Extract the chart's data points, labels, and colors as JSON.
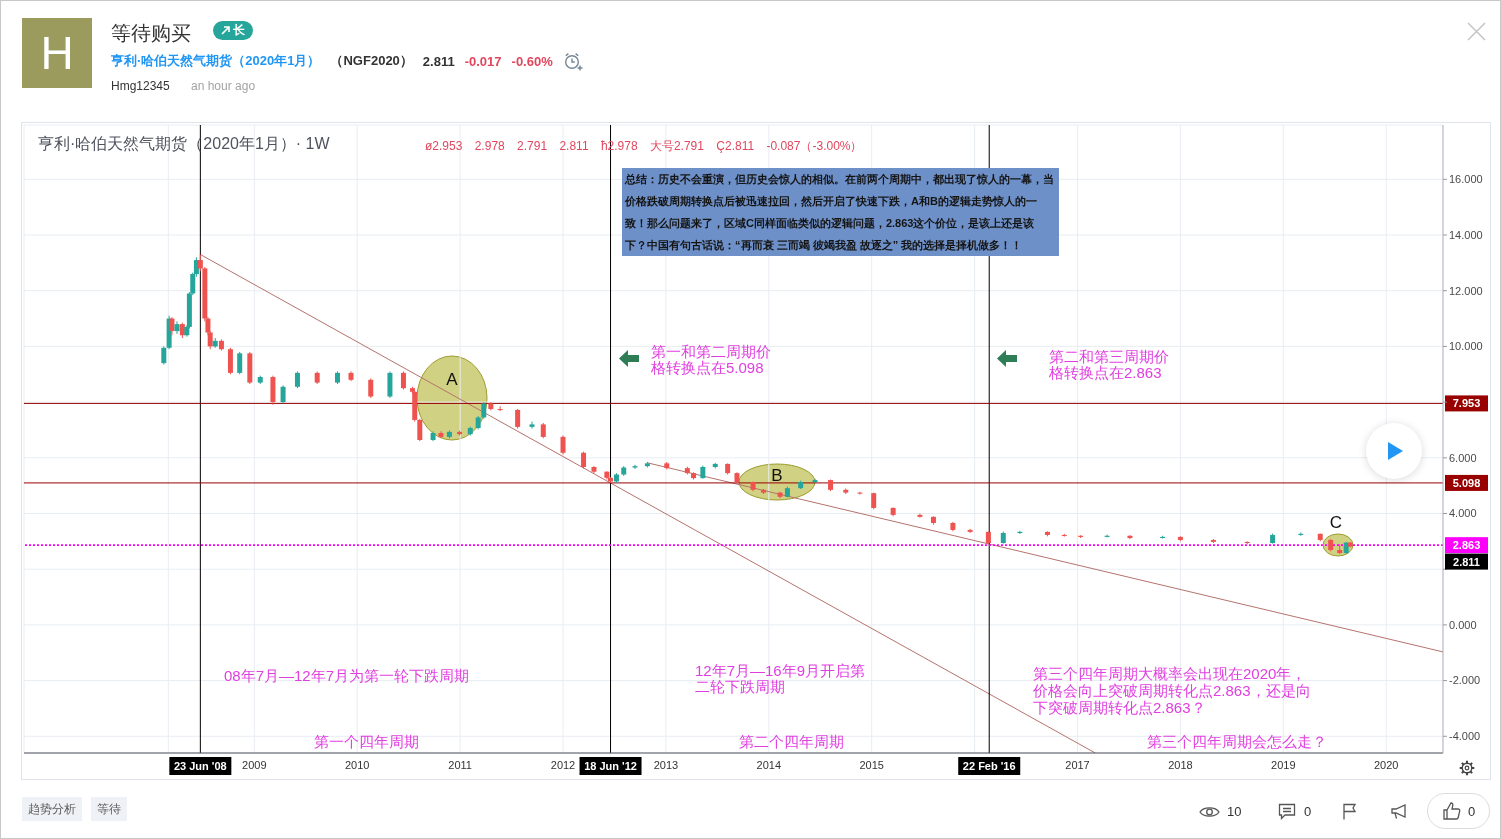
{
  "chart_data": {
    "type": "candlestick",
    "title": "亨利·哈伯天然气期货（2020年1月）· 1W",
    "subtitle": "ø2.953 2.978 2.791 2.811 ћ2.978 大号2.791 Ç2.811 -0.087（-3.00%）",
    "x": [
      "2008-02-14",
      "2008-03-04",
      "2008-03-14",
      "2008-04-01",
      "2008-04-20",
      "2008-05-06",
      "2008-05-15",
      "2008-05-27",
      "2008-06-09",
      "2008-06-23",
      "2008-07-09",
      "2008-07-20",
      "2008-07-28",
      "2008-08-15",
      "2008-09-06",
      "2008-10-08",
      "2008-11-10",
      "2008-12-16",
      "2009-01-22",
      "2009-03-08",
      "2009-04-13",
      "2009-06-03",
      "2009-08-12",
      "2009-10-23",
      "2009-12-10",
      "2010-02-18",
      "2010-04-27",
      "2010-06-14",
      "2010-07-16",
      "2010-07-24",
      "2010-08-11",
      "2010-09-27",
      "2010-10-25",
      "2010-11-24",
      "2010-12-30",
      "2011-02-06",
      "2011-03-06",
      "2011-03-26",
      "2011-04-20",
      "2011-05-23",
      "2011-07-24",
      "2011-09-13",
      "2011-10-23",
      "2012-01-01",
      "2012-03-14",
      "2012-04-20",
      "2012-06-05",
      "2012-06-18",
      "2012-07-09",
      "2012-08-04",
      "2012-09-13",
      "2012-10-27",
      "2013-01-04",
      "2013-03-18",
      "2013-04-09",
      "2013-05-12",
      "2013-06-25",
      "2013-08-08",
      "2013-09-10",
      "2013-11-06",
      "2013-12-13",
      "2014-02-10",
      "2014-03-08",
      "2014-04-24",
      "2014-06-14",
      "2014-08-08",
      "2014-10-01",
      "2014-11-20",
      "2015-01-08",
      "2015-03-18",
      "2015-06-21",
      "2015-08-08",
      "2015-10-16",
      "2015-12-16",
      "2016-02-19",
      "2016-04-12",
      "2016-06-10",
      "2016-09-16",
      "2016-11-15",
      "2017-01-12",
      "2017-04-16",
      "2017-07-06",
      "2017-10-30",
      "2018-01-01",
      "2018-04-28",
      "2018-08-26",
      "2018-11-24",
      "2019-03-04",
      "2019-05-12",
      "2019-06-18",
      "2019-07-20",
      "2019-08-12",
      "2019-08-26"
    ],
    "ohlc": [
      [
        9.4,
        10.0,
        9.35,
        9.95
      ],
      [
        9.95,
        11.1,
        9.9,
        11.0
      ],
      [
        11.0,
        11.05,
        10.4,
        10.55
      ],
      [
        10.55,
        10.9,
        10.45,
        10.8
      ],
      [
        10.8,
        10.85,
        10.3,
        10.4
      ],
      [
        10.4,
        10.75,
        10.35,
        10.7
      ],
      [
        10.7,
        11.95,
        10.65,
        11.9
      ],
      [
        11.9,
        12.65,
        11.85,
        12.6
      ],
      [
        12.6,
        13.2,
        12.5,
        13.1
      ],
      [
        13.1,
        13.3,
        12.7,
        12.8
      ],
      [
        12.8,
        12.85,
        10.9,
        11.0
      ],
      [
        11.0,
        11.05,
        10.4,
        10.5
      ],
      [
        10.5,
        10.55,
        9.9,
        10.0
      ],
      [
        10.0,
        10.3,
        9.95,
        10.2
      ],
      [
        10.2,
        10.25,
        9.85,
        9.9
      ],
      [
        9.9,
        9.95,
        9.0,
        9.05
      ],
      [
        9.05,
        9.8,
        9.0,
        9.75
      ],
      [
        9.75,
        9.8,
        8.65,
        8.7
      ],
      [
        8.7,
        8.95,
        8.65,
        8.9
      ],
      [
        8.9,
        8.95,
        7.9,
        8.0
      ],
      [
        8.0,
        8.6,
        7.95,
        8.55
      ],
      [
        8.55,
        9.1,
        8.5,
        9.05
      ],
      [
        9.05,
        9.1,
        8.65,
        8.7
      ],
      [
        8.7,
        9.1,
        8.65,
        9.05
      ],
      [
        9.05,
        9.1,
        8.75,
        8.8
      ],
      [
        8.8,
        8.85,
        8.15,
        8.2
      ],
      [
        8.2,
        9.1,
        8.15,
        9.05
      ],
      [
        9.05,
        9.1,
        8.45,
        8.5
      ],
      [
        8.5,
        8.55,
        8.3,
        8.37
      ],
      [
        8.37,
        8.4,
        7.3,
        7.36
      ],
      [
        7.36,
        7.4,
        6.6,
        6.64
      ],
      [
        6.64,
        6.95,
        6.6,
        6.89
      ],
      [
        6.89,
        6.95,
        6.7,
        6.75
      ],
      [
        6.75,
        6.98,
        6.7,
        6.93
      ],
      [
        6.93,
        6.97,
        6.8,
        6.85
      ],
      [
        6.85,
        7.12,
        6.8,
        7.07
      ],
      [
        7.07,
        7.5,
        7.02,
        7.45
      ],
      [
        7.45,
        8.0,
        7.4,
        7.95
      ],
      [
        7.95,
        8.0,
        7.7,
        7.75
      ],
      [
        7.75,
        7.85,
        7.68,
        7.72
      ],
      [
        7.72,
        7.75,
        7.05,
        7.11
      ],
      [
        7.11,
        7.3,
        7.05,
        7.2
      ],
      [
        7.2,
        7.25,
        6.7,
        6.75
      ],
      [
        6.75,
        6.8,
        6.12,
        6.18
      ],
      [
        6.18,
        6.22,
        5.62,
        5.67
      ],
      [
        5.67,
        5.7,
        5.45,
        5.5
      ],
      [
        5.5,
        5.52,
        5.22,
        5.28
      ],
      [
        5.28,
        5.3,
        5.1,
        5.15
      ],
      [
        5.15,
        5.45,
        5.1,
        5.4
      ],
      [
        5.4,
        5.7,
        5.35,
        5.65
      ],
      [
        5.65,
        5.75,
        5.6,
        5.7
      ],
      [
        5.7,
        5.85,
        5.65,
        5.8
      ],
      [
        5.8,
        5.85,
        5.58,
        5.63
      ],
      [
        5.63,
        5.68,
        5.4,
        5.45
      ],
      [
        5.45,
        5.48,
        5.22,
        5.27
      ],
      [
        5.27,
        5.72,
        5.25,
        5.67
      ],
      [
        5.67,
        5.82,
        5.62,
        5.78
      ],
      [
        5.78,
        5.8,
        5.4,
        5.45
      ],
      [
        5.45,
        5.48,
        5.08,
        5.13
      ],
      [
        5.13,
        5.15,
        4.8,
        4.85
      ],
      [
        4.85,
        4.88,
        4.7,
        4.75
      ],
      [
        4.75,
        4.78,
        4.55,
        4.6
      ],
      [
        4.6,
        4.96,
        4.58,
        4.91
      ],
      [
        4.91,
        5.18,
        4.88,
        5.13
      ],
      [
        5.13,
        5.25,
        5.1,
        5.2
      ],
      [
        5.2,
        5.22,
        4.8,
        4.85
      ],
      [
        4.85,
        4.9,
        4.7,
        4.75
      ],
      [
        4.75,
        4.78,
        4.68,
        4.73
      ],
      [
        4.73,
        4.75,
        4.15,
        4.2
      ],
      [
        4.2,
        4.22,
        3.9,
        3.95
      ],
      [
        3.95,
        4.0,
        3.85,
        3.88
      ],
      [
        3.88,
        3.9,
        3.6,
        3.66
      ],
      [
        3.66,
        3.7,
        3.36,
        3.41
      ],
      [
        3.41,
        3.45,
        3.3,
        3.34
      ],
      [
        3.34,
        3.36,
        2.9,
        2.94
      ],
      [
        2.94,
        3.35,
        2.92,
        3.3
      ],
      [
        3.3,
        3.38,
        3.26,
        3.34
      ],
      [
        3.34,
        3.36,
        3.18,
        3.23
      ],
      [
        3.23,
        3.27,
        3.17,
        3.2
      ],
      [
        3.2,
        3.22,
        3.12,
        3.16
      ],
      [
        3.16,
        3.24,
        3.14,
        3.2
      ],
      [
        3.2,
        3.22,
        3.08,
        3.12
      ],
      [
        3.12,
        3.2,
        3.1,
        3.16
      ],
      [
        3.16,
        3.18,
        3.0,
        3.05
      ],
      [
        3.05,
        3.08,
        2.94,
        2.98
      ],
      [
        2.98,
        3.0,
        2.9,
        2.94
      ],
      [
        2.94,
        3.28,
        2.92,
        3.23
      ],
      [
        3.23,
        3.32,
        3.2,
        3.27
      ],
      [
        3.27,
        3.28,
        3.0,
        3.05
      ],
      [
        3.05,
        3.08,
        2.64,
        2.69
      ],
      [
        2.69,
        2.9,
        2.55,
        2.58
      ],
      [
        2.58,
        2.98,
        2.56,
        2.953
      ],
      [
        2.953,
        2.978,
        2.791,
        2.811
      ]
    ],
    "colors": [
      "#26a69a",
      "#26a69a",
      "#ef5350",
      "#26a69a",
      "#ef5350",
      "#26a69a",
      "#26a69a",
      "#26a69a",
      "#26a69a",
      "#ef5350",
      "#ef5350",
      "#ef5350",
      "#ef5350",
      "#26a69a",
      "#ef5350",
      "#ef5350",
      "#26a69a",
      "#ef5350",
      "#26a69a",
      "#ef5350",
      "#26a69a",
      "#26a69a",
      "#ef5350",
      "#26a69a",
      "#ef5350",
      "#ef5350",
      "#26a69a",
      "#ef5350",
      "#ef5350",
      "#ef5350",
      "#ef5350",
      "#26a69a",
      "#ef5350",
      "#26a69a",
      "#ef5350",
      "#26a69a",
      "#26a69a",
      "#26a69a",
      "#ef5350",
      "#ef5350",
      "#ef5350",
      "#26a69a",
      "#ef5350",
      "#ef5350",
      "#ef5350",
      "#ef5350",
      "#ef5350",
      "#ef5350",
      "#26a69a",
      "#26a69a",
      "#26a69a",
      "#26a69a",
      "#ef5350",
      "#ef5350",
      "#ef5350",
      "#26a69a",
      "#26a69a",
      "#ef5350",
      "#ef5350",
      "#ef5350",
      "#ef5350",
      "#ef5350",
      "#26a69a",
      "#26a69a",
      "#26a69a",
      "#ef5350",
      "#ef5350",
      "#ef5350",
      "#ef5350",
      "#ef5350",
      "#ef5350",
      "#ef5350",
      "#ef5350",
      "#ef5350",
      "#ef5350",
      "#26a69a",
      "#26a69a",
      "#ef5350",
      "#ef5350",
      "#ef5350",
      "#26a69a",
      "#ef5350",
      "#26a69a",
      "#ef5350",
      "#ef5350",
      "#ef5350",
      "#26a69a",
      "#26a69a",
      "#ef5350",
      "#ef5350",
      "#ef5350",
      "#26a69a",
      "#ef5350"
    ],
    "series": [
      {
        "type": "line",
        "x": [
          "2008-06-23",
          "2017-03-05"
        ],
        "values": [
          13.3,
          -4.6
        ],
        "color": "#b5736e"
      },
      {
        "type": "line",
        "x": [
          "2012-10-27",
          "2020-07-21"
        ],
        "values": [
          5.82,
          -0.97
        ],
        "color": "#b5736e"
      }
    ],
    "xlim": [
      "2006-10-06",
      "2020-07-21"
    ],
    "xticks": [
      {
        "value": "2008-03",
        "label": null
      },
      "2009",
      "2010",
      "2011",
      "2012",
      "2013",
      "2014",
      "2015",
      {
        "value": "2016",
        "label": null
      },
      "2017",
      "2018",
      "2019",
      "2020"
    ],
    "ylim": [
      -4.6,
      17.95
    ],
    "yticks": [
      {
        "value": -4,
        "label": "-4.000"
      },
      {
        "value": -2,
        "label": "-2.000"
      },
      {
        "value": 0,
        "label": "0.000"
      },
      {
        "value": 2,
        "label": null
      },
      {
        "value": 4,
        "label": "4.000"
      },
      {
        "value": 6,
        "label": "6.000"
      },
      {
        "value": 8,
        "label": null
      },
      {
        "value": 10,
        "label": "10.000"
      },
      {
        "value": 12,
        "label": "12.000"
      },
      {
        "value": 14,
        "label": "14.000"
      },
      {
        "value": 16,
        "label": "16.000"
      }
    ],
    "grid": true,
    "ref_lines": [
      {
        "axis": "x",
        "value": "2008-06-23",
        "label": "23 Jun '08",
        "color": "#000000"
      },
      {
        "axis": "x",
        "value": "2012-06-18",
        "label": "18 Jun '12",
        "color": "#000000"
      },
      {
        "axis": "x",
        "value": "2016-02-22",
        "label": "22 Feb '16",
        "color": "#000000"
      },
      {
        "axis": "y",
        "value": 7.953,
        "label": "7.953",
        "color": "#990000"
      },
      {
        "axis": "y",
        "value": 5.098,
        "label": "5.098",
        "color": "#990000"
      },
      {
        "axis": "y",
        "value": 2.863,
        "label": "2.863",
        "color": "#ff00ff",
        "line_style": "dotted"
      }
    ],
    "annotations": [
      "H",
      "等待购买",
      "长",
      "亨利·哈伯天然气期货（2020年1月）",
      "（NGF2020）",
      "2.811",
      "-0.017",
      "-0.60%",
      "Hmg12345",
      "an hour ago",
      "总结：历史不会重演，但历史会惊人的相似。在前两个周期中，都出现了惊人的一幕，当价格跌破周期转换点后被迅速拉回，然后开启了快速下跌，A和B的逻辑走势惊人的一致！那么问题来了，区域C同样面临类似的逻辑问题，2.863这个价位，是该上还是该下？中国有句古话说：“再而衰 三而竭 彼竭我盈 故逐之” 我的选择是择机做多！！",
      "第一和第二周期价格转换点在5.098",
      "第二和第三周期价格转换点在2.863",
      "08年7月—12年7月为第一轮下跌周期",
      "12年7月—16年9月开启第二轮下跌周期",
      "第三个四年周期大概率会出现在2020年，价格会向上突破周期转化点2.863，还是向下突破周期转化点2.863？",
      "第一个四年周期",
      "第二个四年周期",
      "第三个四年周期会怎么走？",
      "趋势分析",
      "等待",
      "10",
      "0",
      "0",
      "A",
      "B",
      "C",
      {
        "text": "2.811",
        "y": 2.811
      }
    ]
  }
}
